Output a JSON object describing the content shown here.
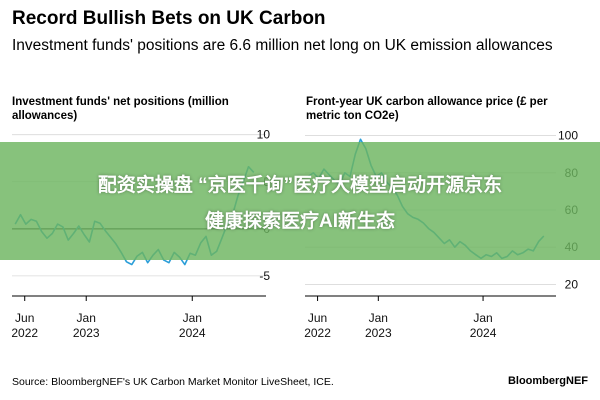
{
  "header": {
    "title": "Record Bullish Bets on UK Carbon",
    "subtitle": "Investment funds' positions are 6.6 million net long on UK emission allowances"
  },
  "banner": {
    "line1": "配资实操盘 “京医千询”医疗大模型启动开源京东",
    "line2": "健康探索医疗AI新生态"
  },
  "footer": {
    "source": "Source: BloombergNEF's UK Carbon Market Monitor LiveSheet, ICE.",
    "brand": "BloombergNEF"
  },
  "colors": {
    "line": "#2b9ed8",
    "zero_line": "#000000",
    "grid": "#d9d9d9",
    "banner": "#6db45f"
  },
  "chart_data": [
    {
      "type": "line",
      "title": "Investment funds' net positions (million allowances)",
      "yticks": [
        10,
        5,
        0,
        -5
      ],
      "ylim": [
        -6.5,
        10.5
      ],
      "grid": true,
      "xticks": [
        {
          "line1": "Jun",
          "line2": "2022",
          "t": 2022.42
        },
        {
          "line1": "Jan",
          "line2": "2023",
          "t": 2023.0
        },
        {
          "line1": "Jan",
          "line2": "2024",
          "t": 2024.0
        }
      ],
      "xlim": [
        2022.3,
        2024.62
      ],
      "series": [
        {
          "t": [
            2022.33,
            2022.38,
            2022.43,
            2022.48,
            2022.53,
            2022.58,
            2022.63,
            2022.68,
            2022.73,
            2022.78,
            2022.83,
            2022.88,
            2022.93,
            2022.98,
            2023.03,
            2023.08,
            2023.13,
            2023.18,
            2023.23,
            2023.28,
            2023.33,
            2023.38,
            2023.43,
            2023.48,
            2023.53,
            2023.58,
            2023.63,
            2023.68,
            2023.73,
            2023.78,
            2023.83,
            2023.88,
            2023.93,
            2023.98,
            2024.03,
            2024.08,
            2024.13,
            2024.18,
            2024.23,
            2024.28,
            2024.33,
            2024.38,
            2024.43,
            2024.48,
            2024.53,
            2024.58
          ],
          "values": [
            0.5,
            1.5,
            0.5,
            1.0,
            0.8,
            -0.3,
            -1.0,
            -0.5,
            0.5,
            0.2,
            -1.2,
            -0.5,
            0.3,
            -0.6,
            -1.4,
            0.8,
            0.6,
            -0.2,
            -0.9,
            -1.6,
            -2.5,
            -3.5,
            -3.8,
            -2.9,
            -2.5,
            -3.6,
            -2.8,
            -2.2,
            -3.3,
            -3.6,
            -2.5,
            -3.0,
            -3.8,
            -2.6,
            -2.8,
            -1.5,
            -0.8,
            -2.8,
            -2.4,
            -1.0,
            0.5,
            1.5,
            3.5,
            5.0,
            6.6,
            6.0
          ]
        }
      ]
    },
    {
      "type": "line",
      "title": "Front-year UK carbon allowance price (£ per metric ton CO2e)",
      "yticks": [
        100,
        80,
        60,
        40,
        20
      ],
      "ylim": [
        17,
        103
      ],
      "grid": true,
      "xticks": [
        {
          "line1": "Jun",
          "line2": "2022",
          "t": 2022.42
        },
        {
          "line1": "Jan",
          "line2": "2023",
          "t": 2023.0
        },
        {
          "line1": "Jan",
          "line2": "2024",
          "t": 2024.0
        }
      ],
      "xlim": [
        2022.3,
        2024.62
      ],
      "series": [
        {
          "t": [
            2022.33,
            2022.38,
            2022.43,
            2022.48,
            2022.53,
            2022.58,
            2022.63,
            2022.68,
            2022.73,
            2022.78,
            2022.83,
            2022.88,
            2022.93,
            2022.98,
            2023.03,
            2023.08,
            2023.13,
            2023.18,
            2023.23,
            2023.28,
            2023.33,
            2023.38,
            2023.43,
            2023.48,
            2023.53,
            2023.58,
            2023.63,
            2023.68,
            2023.73,
            2023.78,
            2023.83,
            2023.88,
            2023.93,
            2023.98,
            2024.03,
            2024.08,
            2024.13,
            2024.18,
            2024.23,
            2024.28,
            2024.33,
            2024.38,
            2024.43,
            2024.48,
            2024.53,
            2024.58
          ],
          "values": [
            78,
            80,
            77,
            82,
            79,
            76,
            74,
            80,
            78,
            90,
            98,
            93,
            84,
            78,
            80,
            75,
            72,
            68,
            62,
            58,
            56,
            55,
            53,
            50,
            48,
            45,
            42,
            44,
            40,
            43,
            41,
            38,
            36,
            34,
            36,
            35,
            37,
            34,
            35,
            38,
            36,
            37,
            39,
            38,
            43,
            46
          ]
        }
      ]
    }
  ]
}
